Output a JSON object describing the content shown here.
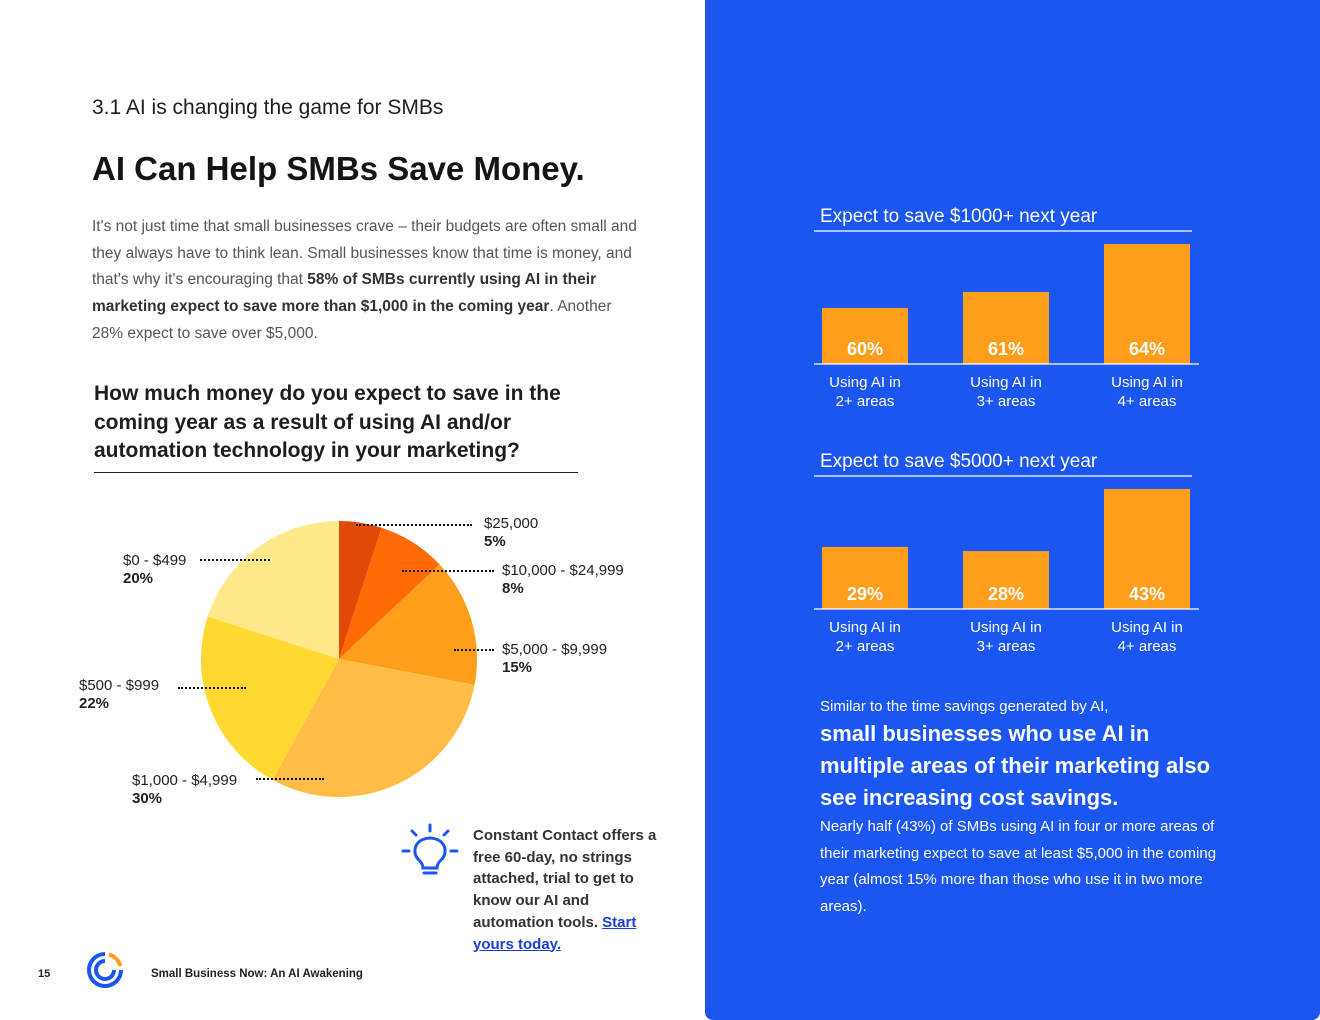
{
  "section_label": "3.1 AI is changing the game for SMBs",
  "headline": "AI Can Help SMBs Save Money.",
  "intro": {
    "part1": "It's not just time that small businesses crave – their budgets are often small and they always have to think lean. Small businesses know that time is money, and that's why it's encouraging that ",
    "bold": "58% of SMBs currently using AI in their marketing expect to save more than $1,000 in the coming year",
    "part2": ". Another 28% expect to save over $5,000."
  },
  "question": "How much money do you expect to save in the coming year as a result of using AI and/or automation technology in your marketing?",
  "pie_chart": {
    "chart_data": {
      "type": "pie",
      "title": "",
      "slices": [
        {
          "label": "$25,000",
          "value": 5,
          "value_label": "5%",
          "color": "#e14a06"
        },
        {
          "label": "$10,000 - $24,999",
          "value": 8,
          "value_label": "8%",
          "color": "#fe6a06"
        },
        {
          "label": "$5,000 - $9,999",
          "value": 15,
          "value_label": "15%",
          "color": "#ff9e1a"
        },
        {
          "label": "$1,000 - $4,999",
          "value": 30,
          "value_label": "30%",
          "color": "#ffbd45"
        },
        {
          "label": "$500 - $999",
          "value": 22,
          "value_label": "22%",
          "color": "#ffd931"
        },
        {
          "label": "$0 - $499",
          "value": 20,
          "value_label": "20%",
          "color": "#ffe98a"
        }
      ]
    }
  },
  "tip": {
    "text": "Constant Contact offers a free 60-day, no strings attached, trial to get to know our AI and automation tools.",
    "link": "Start yours today."
  },
  "footer": {
    "page_number": "15",
    "title": "Small Business Now: An AI Awakening"
  },
  "bar_charts": {
    "chart_data": [
      {
        "type": "bar",
        "title": "Expect to save $1000+ next year",
        "categories": [
          "Using AI in 2+ areas",
          "Using AI in 3+ areas",
          "Using AI in 4+ areas"
        ],
        "values": [
          60,
          61,
          64
        ],
        "value_labels": [
          "60%",
          "61%",
          "64%"
        ],
        "ylim": [
          56.5,
          64
        ]
      },
      {
        "type": "bar",
        "title": "Expect to save $5000+ next year",
        "categories": [
          "Using AI in 2+ areas",
          "Using AI in 3+ areas",
          "Using AI in 4+ areas"
        ],
        "values": [
          29,
          28,
          43
        ],
        "value_labels": [
          "29%",
          "28%",
          "43%"
        ],
        "ylim": [
          14,
          43
        ]
      }
    ],
    "bar_color": "#ff9e1a"
  },
  "closing": {
    "lead": "Similar to the time savings generated by AI,",
    "highlight": "small businesses who use AI in multiple areas of their marketing also see increasing cost savings.",
    "body": "Nearly half (43%) of SMBs using AI in four or more areas of their marketing expect to save at least $5,000 in the coming year (almost 15% more than those who use it in two more areas)."
  }
}
